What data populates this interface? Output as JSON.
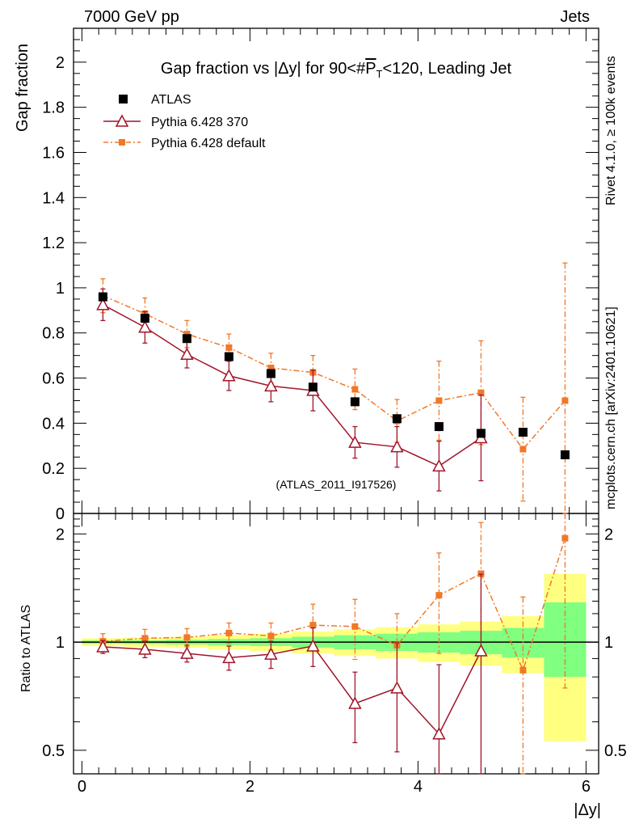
{
  "header": {
    "left": "7000 GeV pp",
    "right": "Jets"
  },
  "side": {
    "rivet": "Rivet 4.1.0, ≥ 100k events",
    "mcplots": "mcplots.cern.ch [arXiv:2401.10621]"
  },
  "chart_data": {
    "type": "scatter",
    "title": "Gap fraction vs |Δy| for 90<#P_T<120, Leading Jet",
    "title_parts": {
      "pre": "Gap fraction vs |Δy| for 90<#",
      "p": "P",
      "sub": "T",
      "post": "<120, Leading Jet"
    },
    "xlabel": "|Δy|",
    "ylabel": "Gap fraction",
    "ratio_ylabel": "Ratio to ATLAS",
    "watermark": "(ATLAS_2011_I917526)",
    "xlim": [
      -0.1,
      6.15
    ],
    "ylim": [
      0,
      2.15
    ],
    "ratio_ylim": [
      0.43,
      2.28
    ],
    "x_ticks": [
      0,
      2,
      4,
      6
    ],
    "y_ticks": [
      0,
      0.2,
      0.4,
      0.6,
      0.8,
      1,
      1.2,
      1.4,
      1.6,
      1.8,
      2
    ],
    "ratio_ticks": [
      0.5,
      1,
      2
    ],
    "x": [
      0.25,
      0.75,
      1.25,
      1.75,
      2.25,
      2.75,
      3.25,
      3.75,
      4.25,
      4.75,
      5.25,
      5.75
    ],
    "bin_edges": [
      0,
      0.5,
      1,
      1.5,
      2,
      2.5,
      3,
      3.5,
      4,
      4.5,
      5,
      5.5,
      6
    ],
    "legend": [
      "ATLAS",
      "Pythia 6.428 370",
      "Pythia 6.428 default"
    ],
    "series": [
      {
        "name": "ATLAS",
        "color": "#000000",
        "values": [
          0.96,
          0.865,
          0.775,
          0.695,
          0.62,
          0.56,
          0.495,
          0.42,
          0.385,
          0.355,
          0.36,
          0.26
        ]
      },
      {
        "name": "Pythia 6.428 370",
        "color": "#a01428",
        "values": [
          0.925,
          0.825,
          0.705,
          0.61,
          0.565,
          0.545,
          0.315,
          0.295,
          0.21,
          0.335,
          null,
          null
        ],
        "errors": [
          0.07,
          0.07,
          0.06,
          0.065,
          0.07,
          0.09,
          0.07,
          0.09,
          0.11,
          0.19,
          null,
          null
        ],
        "ratio": [
          0.97,
          0.955,
          0.93,
          0.905,
          0.925,
          0.975,
          0.675,
          0.745,
          0.555,
          0.945,
          null,
          null
        ],
        "ratio_errors": [
          0.04,
          0.05,
          0.05,
          0.07,
          0.08,
          0.12,
          0.15,
          0.25,
          0.31,
          0.6,
          null,
          null
        ]
      },
      {
        "name": "Pythia 6.428 default",
        "color": "#f07828",
        "values": [
          0.965,
          0.885,
          0.795,
          0.735,
          0.645,
          0.625,
          0.55,
          0.41,
          0.5,
          0.535,
          0.285,
          0.5
        ],
        "errors": [
          0.075,
          0.07,
          0.06,
          0.06,
          0.065,
          0.075,
          0.09,
          0.095,
          0.175,
          0.23,
          0.23,
          0.61
        ],
        "ratio": [
          1.005,
          1.025,
          1.03,
          1.06,
          1.04,
          1.115,
          1.105,
          0.98,
          1.35,
          1.55,
          0.835,
          1.945
        ],
        "ratio_errors": [
          0.05,
          0.06,
          0.06,
          0.07,
          0.09,
          0.16,
          0.21,
          0.22,
          0.42,
          0.6,
          0.5,
          1.2
        ]
      }
    ],
    "band_yellow": [
      [
        0.975,
        1.025
      ],
      [
        0.97,
        1.03
      ],
      [
        0.965,
        1.035
      ],
      [
        0.955,
        1.045
      ],
      [
        0.945,
        1.055
      ],
      [
        0.93,
        1.07
      ],
      [
        0.915,
        1.085
      ],
      [
        0.9,
        1.1
      ],
      [
        0.88,
        1.12
      ],
      [
        0.86,
        1.14
      ],
      [
        0.82,
        1.18
      ],
      [
        0.53,
        1.55
      ]
    ],
    "band_green": [
      [
        0.99,
        1.01
      ],
      [
        0.988,
        1.012
      ],
      [
        0.985,
        1.015
      ],
      [
        0.98,
        1.02
      ],
      [
        0.975,
        1.025
      ],
      [
        0.965,
        1.035
      ],
      [
        0.955,
        1.045
      ],
      [
        0.945,
        1.055
      ],
      [
        0.935,
        1.065
      ],
      [
        0.925,
        1.075
      ],
      [
        0.905,
        1.095
      ],
      [
        0.8,
        1.29
      ]
    ],
    "colors": {
      "yellow": "#ffff80",
      "green": "#80ff80",
      "grey_text": "#999999"
    }
  }
}
